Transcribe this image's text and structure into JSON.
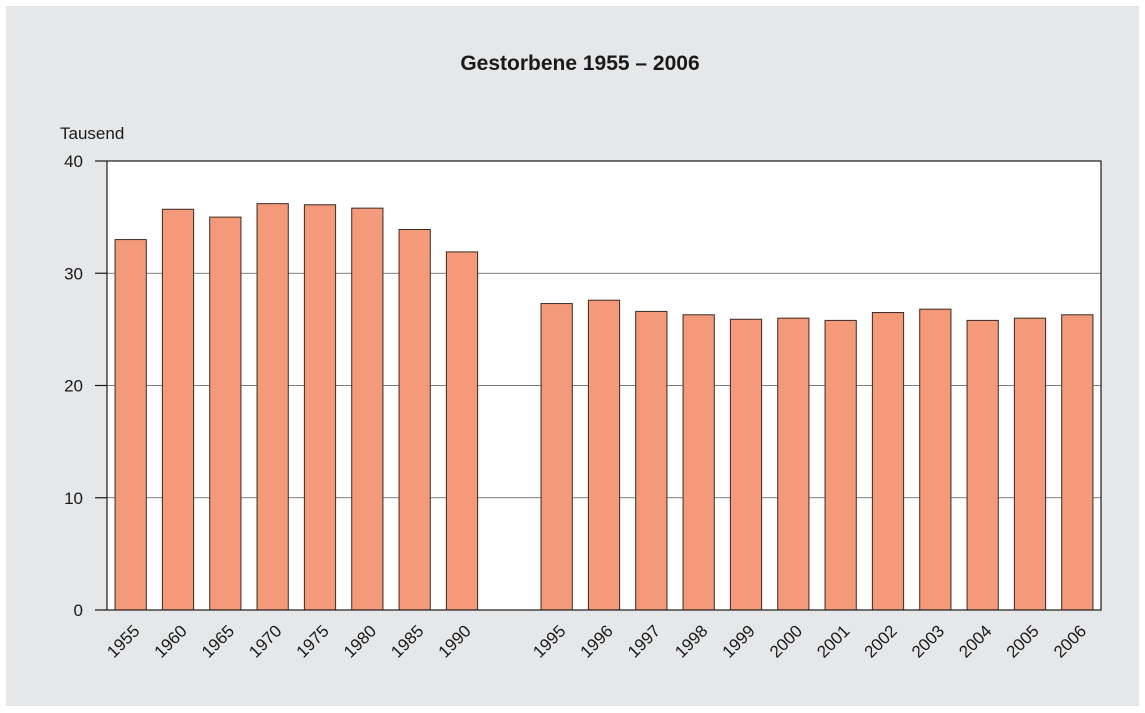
{
  "chart_data": {
    "type": "bar",
    "title": "Gestorbene 1955 – 2006",
    "y_label": "Tausend",
    "categories": [
      "1955",
      "1960",
      "1965",
      "1970",
      "1975",
      "1980",
      "1985",
      "1990",
      null,
      "1995",
      "1996",
      "1997",
      "1998",
      "1999",
      "2000",
      "2001",
      "2002",
      "2003",
      "2004",
      "2005",
      "2006"
    ],
    "values": [
      33.0,
      35.7,
      35.0,
      36.2,
      36.1,
      35.8,
      33.9,
      31.9,
      null,
      27.3,
      27.6,
      26.6,
      26.3,
      25.9,
      26.0,
      25.8,
      26.5,
      26.8,
      25.8,
      26.0,
      26.3
    ],
    "color": "#f4997a",
    "ylim": [
      0,
      40
    ],
    "yticks": [
      0,
      10,
      20,
      30,
      40
    ],
    "grid": true
  }
}
